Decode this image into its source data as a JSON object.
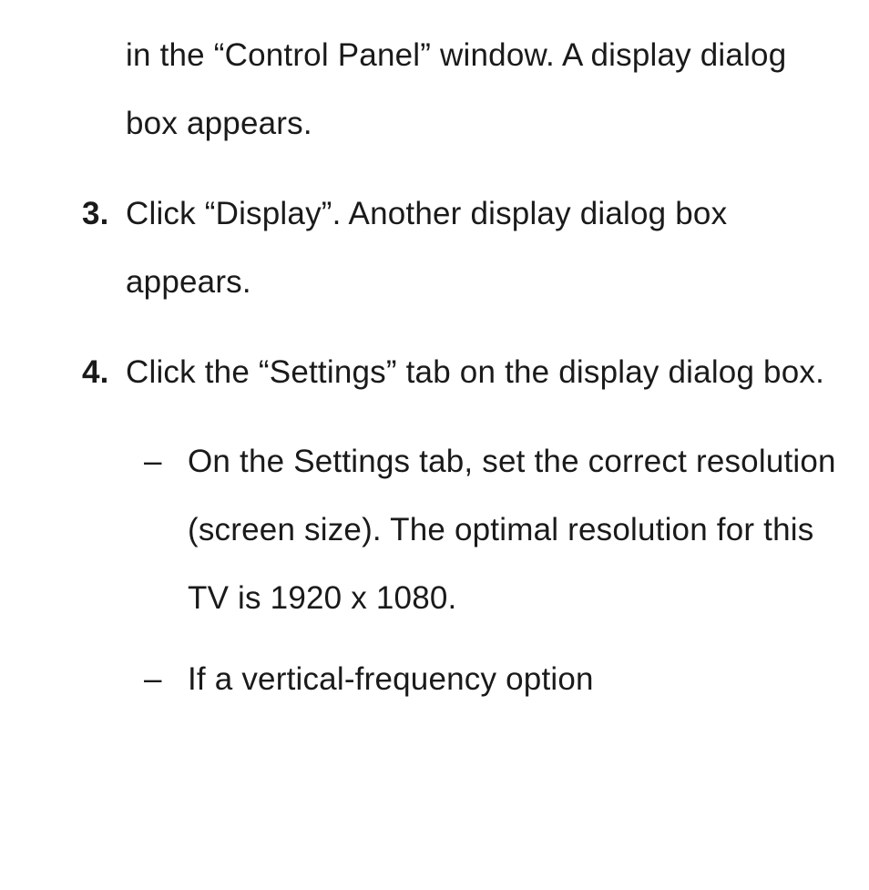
{
  "document": {
    "continuation_text": "in the “Control Panel” window. A display dialog box appears.",
    "items": [
      {
        "number": "3.",
        "text": "Click “Display”. Another display dialog box appears."
      },
      {
        "number": "4.",
        "text": "Click the “Settings” tab on the display dialog box."
      }
    ],
    "sub_items": [
      {
        "marker": "–",
        "text": "On the Settings tab, set the correct resolution (screen size). The optimal resolution for this TV is 1920 x 1080."
      },
      {
        "marker": "–",
        "text": "If a vertical-frequency option"
      }
    ]
  },
  "styling": {
    "background_color": "#ffffff",
    "text_color": "#1a1a1a",
    "font_size_pt": 26,
    "font_family": "Arial, Helvetica, sans-serif",
    "line_height": 2.14,
    "number_font_weight": "bold"
  }
}
